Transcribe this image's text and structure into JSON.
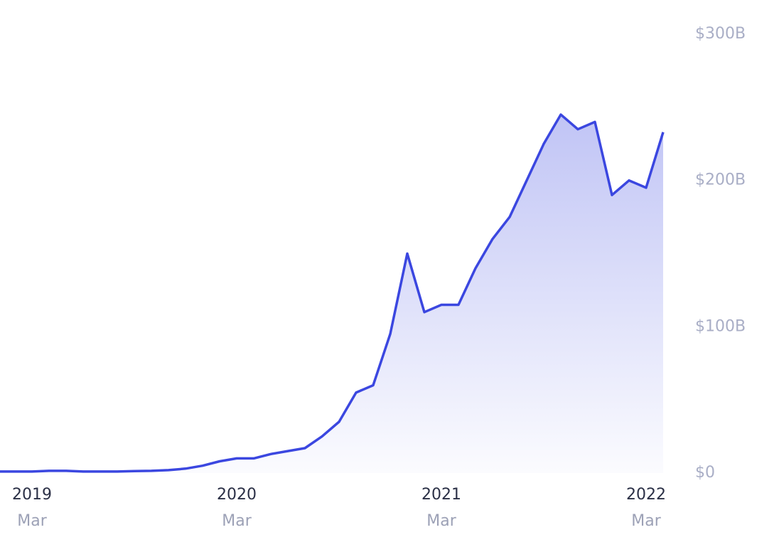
{
  "chart_data": {
    "type": "area",
    "x": [
      "2019-01",
      "2019-02",
      "2019-03",
      "2019-04",
      "2019-05",
      "2019-06",
      "2019-07",
      "2019-08",
      "2019-09",
      "2019-10",
      "2019-11",
      "2019-12",
      "2020-01",
      "2020-02",
      "2020-03",
      "2020-04",
      "2020-05",
      "2020-06",
      "2020-07",
      "2020-08",
      "2020-09",
      "2020-10",
      "2020-11",
      "2020-12",
      "2021-01",
      "2021-02",
      "2021-03",
      "2021-04",
      "2021-05",
      "2021-06",
      "2021-07",
      "2021-08",
      "2021-09",
      "2021-10",
      "2021-11",
      "2021-12",
      "2022-01",
      "2022-02",
      "2022-03",
      "2022-04"
    ],
    "values": [
      1,
      1,
      1,
      1.5,
      1.5,
      1,
      1,
      1,
      1.3,
      1.5,
      2,
      3,
      5,
      8,
      10,
      10,
      13,
      15,
      17,
      25,
      35,
      55,
      60,
      95,
      150,
      110,
      115,
      115,
      140,
      160,
      175,
      200,
      225,
      245,
      235,
      240,
      190,
      200,
      195,
      233
    ],
    "color": "#3b47e0",
    "xlim": [
      "2019-01",
      "2022-04"
    ],
    "xticks": [
      {
        "value": "2019-03",
        "label": "2019",
        "sublabel": "Mar"
      },
      {
        "value": "2020-03",
        "label": "2020",
        "sublabel": "Mar"
      },
      {
        "value": "2021-03",
        "label": "2021",
        "sublabel": "Mar"
      },
      {
        "value": "2022-03",
        "label": "2022",
        "sublabel": "Mar"
      }
    ],
    "ylim": [
      0,
      300
    ],
    "yticks": [
      {
        "value": 0,
        "label": "$0"
      },
      {
        "value": 100,
        "label": "$100B"
      },
      {
        "value": 200,
        "label": "$200B"
      },
      {
        "value": 300,
        "label": "$300B"
      }
    ],
    "grid": false
  }
}
